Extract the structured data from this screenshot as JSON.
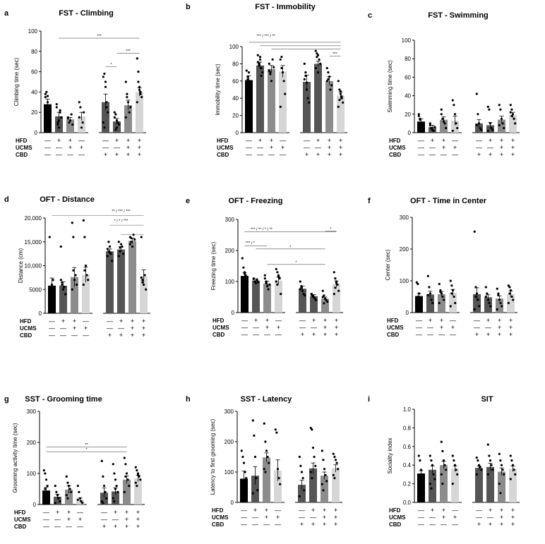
{
  "groups": {
    "row_labels": [
      "HFD",
      "UCMS",
      "CBD"
    ],
    "signs": [
      [
        "—",
        "+",
        "+",
        "—",
        "—",
        "+",
        "+",
        "+"
      ],
      [
        "—",
        "—",
        "+",
        "+",
        "—",
        "—",
        "+",
        "+"
      ],
      [
        "—",
        "—",
        "—",
        "—",
        "+",
        "+",
        "+",
        "+"
      ]
    ]
  },
  "colors": [
    "#000000",
    "#555555",
    "#8c8c8c",
    "#d6d6d6",
    "#555555",
    "#555555",
    "#8c8c8c",
    "#d6d6d6"
  ],
  "chart_data": [
    {
      "letter": "a",
      "type": "bar",
      "title": "FST - Climbing",
      "ylabel": "Climbing time (sec)",
      "ylim": [
        0,
        100
      ],
      "yticks": [
        0,
        20,
        40,
        60,
        80,
        100
      ],
      "values": [
        28,
        16,
        13,
        16,
        30,
        11,
        27,
        40
      ],
      "errors": [
        5,
        4,
        2,
        4,
        8,
        3,
        5,
        4
      ],
      "points": [
        [
          35,
          40,
          30,
          25,
          20,
          38,
          22,
          36
        ],
        [
          28,
          10,
          5,
          20,
          15,
          25,
          8,
          12,
          22
        ],
        [
          15,
          10,
          12,
          18,
          8,
          14
        ],
        [
          30,
          25,
          5,
          10,
          20,
          15
        ],
        [
          55,
          58,
          45,
          30,
          20,
          10,
          5,
          50,
          25
        ],
        [
          20,
          18,
          5,
          10,
          8,
          15,
          3,
          12
        ],
        [
          50,
          38,
          30,
          20,
          25,
          15,
          35
        ],
        [
          73,
          60,
          45,
          40,
          35,
          30,
          50,
          42,
          38
        ]
      ],
      "sig": [
        {
          "from": 1,
          "to": 7,
          "level": 93,
          "text": "***"
        },
        {
          "from": 4,
          "to": 5,
          "level": 65,
          "text": "*"
        },
        {
          "from": 5,
          "to": 7,
          "level": 78,
          "text": "***"
        }
      ]
    },
    {
      "letter": "b",
      "type": "bar",
      "title": "FST - Immobility",
      "ylabel": "Immobility time (sec)",
      "ylim": [
        0,
        100
      ],
      "yticks": [
        0,
        20,
        40,
        60,
        80,
        100
      ],
      "values": [
        61,
        78,
        74,
        71,
        59,
        80,
        60,
        43
      ],
      "errors": [
        5,
        4,
        4,
        7,
        8,
        3,
        5,
        4
      ],
      "points": [
        [
          55,
          65,
          70,
          60,
          58,
          72,
          62
        ],
        [
          90,
          80,
          85,
          75,
          70,
          82,
          78,
          88,
          66
        ],
        [
          80,
          70,
          60,
          85,
          76,
          72,
          68
        ],
        [
          85,
          88,
          70,
          60,
          45,
          30,
          75
        ],
        [
          80,
          70,
          50,
          40,
          35,
          62,
          66,
          58
        ],
        [
          95,
          92,
          90,
          85,
          80,
          75,
          88,
          70
        ],
        [
          75,
          70,
          65,
          50,
          55,
          60,
          62
        ],
        [
          60,
          50,
          45,
          40,
          35,
          30,
          38,
          48,
          42
        ]
      ],
      "sig": [
        {
          "from": 0,
          "to": 7,
          "level": 105,
          "text": ""
        },
        {
          "from": 1,
          "to": 7,
          "level": 101,
          "text": ""
        },
        {
          "from": 2,
          "to": 7,
          "level": 97,
          "text": ""
        },
        {
          "from": 6,
          "to": 7,
          "level": 89,
          "text": "***"
        }
      ],
      "sig_caption": {
        "text": "*** / *** / **",
        "from": 0,
        "to": 3,
        "level": 111
      }
    },
    {
      "letter": "c",
      "type": "bar",
      "title": "FST - Swimming",
      "ylabel": "Swimming time (sec)",
      "ylim": [
        0,
        100
      ],
      "yticks": [
        0,
        20,
        40,
        60,
        80,
        100
      ],
      "values": [
        12,
        6,
        14,
        13,
        10,
        8,
        14,
        19
      ],
      "errors": [
        3,
        2,
        3,
        5,
        4,
        3,
        4,
        3
      ],
      "points": [
        [
          20,
          15,
          10,
          8,
          5,
          18,
          14
        ],
        [
          8,
          5,
          3,
          2,
          6,
          10
        ],
        [
          20,
          15,
          12,
          10,
          5,
          25
        ],
        [
          35,
          30,
          20,
          10,
          5,
          2
        ],
        [
          42,
          20,
          10,
          5,
          3,
          8
        ],
        [
          28,
          25,
          10,
          5,
          3,
          2
        ],
        [
          30,
          25,
          15,
          10,
          5,
          8
        ],
        [
          30,
          25,
          20,
          15,
          10,
          22,
          18
        ]
      ],
      "sig": []
    },
    {
      "letter": "d",
      "type": "bar",
      "title": "OFT - Distance",
      "ylabel": "Distance (cm)",
      "ylim": [
        0,
        20000
      ],
      "yticks": [
        0,
        5000,
        10000,
        15000,
        20000
      ],
      "ytick_labels": [
        "0",
        "5000",
        "10,000",
        "15,000",
        "20,000"
      ],
      "values": [
        5800,
        5800,
        7600,
        8100,
        13000,
        13400,
        15200,
        7700
      ],
      "errors": [
        1600,
        800,
        2000,
        1600,
        500,
        600,
        600,
        1400
      ],
      "points": [
        [
          16000,
          5000,
          6000,
          7000,
          4000,
          5500
        ],
        [
          14000,
          6000,
          5000,
          5500,
          4000,
          7000,
          6500
        ],
        [
          19000,
          16000,
          7000,
          8000,
          6000,
          5000,
          9000
        ],
        [
          19500,
          16000,
          10000,
          8000,
          7000,
          6000,
          9000
        ],
        [
          12000,
          13000,
          14000,
          12500,
          11000,
          13500,
          15000,
          12800
        ],
        [
          12000,
          13000,
          14500,
          14000,
          12500,
          15000,
          13800
        ],
        [
          16000,
          15000,
          14000,
          16500,
          15500,
          14500,
          15800
        ],
        [
          16000,
          7000,
          6000,
          8000,
          5000,
          7500,
          6500
        ]
      ],
      "sig": [
        {
          "from": 0,
          "to": 7,
          "level": 20500,
          "text": ""
        },
        {
          "from": 4,
          "to": 7,
          "level": 18500,
          "text": ""
        },
        {
          "from": 5,
          "to": 7,
          "level": 16500,
          "text": ""
        }
      ],
      "sig_captions": [
        {
          "text": "** / *** / ***",
          "from": 4,
          "to": 6,
          "level": 21200
        },
        {
          "text": "* / * / ***",
          "from": 4,
          "to": 6,
          "level": 19200
        }
      ]
    },
    {
      "letter": "e",
      "type": "bar",
      "title": "OFT - Freezing",
      "ylabel": "Freezing time (sec)",
      "ylim": [
        0,
        300
      ],
      "yticks": [
        0,
        100,
        200,
        300
      ],
      "values": [
        118,
        103,
        93,
        103,
        77,
        53,
        45,
        92
      ],
      "errors": [
        10,
        6,
        8,
        12,
        8,
        5,
        5,
        10
      ],
      "points": [
        [
          175,
          145,
          130,
          120,
          110,
          100,
          95,
          125
        ],
        [
          110,
          100,
          95,
          105,
          98,
          108
        ],
        [
          120,
          100,
          85,
          75,
          90,
          110,
          95
        ],
        [
          140,
          130,
          120,
          110,
          60,
          100,
          90,
          115
        ],
        [
          100,
          85,
          70,
          60,
          55,
          75,
          80
        ],
        [
          60,
          55,
          50,
          45,
          40,
          58,
          52
        ],
        [
          70,
          55,
          45,
          40,
          35,
          50,
          30
        ],
        [
          130,
          110,
          100,
          90,
          70,
          60,
          80,
          95
        ]
      ],
      "sig": [
        {
          "from": 0,
          "to": 7,
          "level": 260,
          "text": ""
        },
        {
          "from": 0,
          "to": 2,
          "level": 215,
          "text": ""
        },
        {
          "from": 1,
          "to": 6,
          "level": 205,
          "text": "*"
        },
        {
          "from": 2,
          "to": 6,
          "level": 155,
          "text": "*"
        },
        {
          "from": 6,
          "to": 7,
          "level": 262,
          "text": "*"
        }
      ],
      "sig_captions": [
        {
          "text": "*** / ** / * / **",
          "from": 0,
          "to": 3,
          "level": 265
        },
        {
          "text": "*** / *",
          "from": 0,
          "to": 1,
          "level": 220
        }
      ]
    },
    {
      "letter": "f",
      "type": "bar",
      "title": "OFT - Time in Center",
      "ylabel": "Center (sec)",
      "ylim": [
        0,
        300
      ],
      "yticks": [
        0,
        100,
        200,
        300
      ],
      "values": [
        52,
        57,
        58,
        63,
        58,
        48,
        44,
        58
      ],
      "errors": [
        8,
        10,
        8,
        10,
        20,
        8,
        8,
        10
      ],
      "points": [
        [
          95,
          90,
          60,
          40,
          30,
          20,
          50
        ],
        [
          115,
          80,
          60,
          40,
          30,
          55
        ],
        [
          90,
          70,
          60,
          50,
          40,
          30,
          65
        ],
        [
          100,
          85,
          70,
          50,
          30,
          20,
          60
        ],
        [
          255,
          80,
          60,
          40,
          20,
          10,
          50
        ],
        [
          80,
          60,
          40,
          30,
          20,
          50
        ],
        [
          75,
          60,
          40,
          30,
          20,
          10,
          55
        ],
        [
          85,
          80,
          70,
          50,
          40,
          30,
          60
        ]
      ],
      "sig": []
    },
    {
      "letter": "g",
      "type": "bar",
      "title": "SST - Grooming time",
      "ylabel": "Grooming activity time (sec)",
      "ylim": [
        0,
        300
      ],
      "yticks": [
        0,
        100,
        200,
        300
      ],
      "values": [
        45,
        25,
        48,
        15,
        38,
        42,
        80,
        84
      ],
      "errors": [
        10,
        8,
        12,
        6,
        15,
        12,
        12,
        10
      ],
      "points": [
        [
          110,
          100,
          80,
          60,
          40,
          20,
          50
        ],
        [
          60,
          40,
          30,
          20,
          10,
          5
        ],
        [
          90,
          70,
          60,
          50,
          40,
          30,
          20
        ],
        [
          60,
          40,
          20,
          10,
          5,
          15
        ],
        [
          140,
          90,
          60,
          40,
          20,
          10,
          5
        ],
        [
          130,
          100,
          80,
          60,
          40,
          20,
          10,
          50
        ],
        [
          150,
          130,
          100,
          80,
          60,
          40,
          90
        ],
        [
          120,
          110,
          100,
          90,
          80,
          70,
          60,
          95
        ]
      ],
      "sig": [
        {
          "from": 0,
          "to": 6,
          "level": 185,
          "text": "**"
        },
        {
          "from": 0,
          "to": 6,
          "level": 170,
          "text": "*"
        }
      ]
    },
    {
      "letter": "h",
      "type": "bar",
      "title": "SST - Latency",
      "ylabel": "Latency to first grooming (sec)",
      "ylim": [
        0,
        300
      ],
      "yticks": [
        0,
        100,
        200,
        300
      ],
      "values": [
        78,
        88,
        148,
        105,
        58,
        112,
        88,
        112
      ],
      "errors": [
        25,
        30,
        15,
        35,
        15,
        18,
        12,
        12
      ],
      "points": [
        [
          170,
          150,
          130,
          100,
          80,
          60,
          40
        ],
        [
          270,
          220,
          150,
          80,
          40,
          30
        ],
        [
          260,
          200,
          170,
          150,
          130,
          110,
          100
        ],
        [
          240,
          230,
          110,
          80,
          60
        ],
        [
          150,
          120,
          100,
          80,
          40,
          20
        ],
        [
          245,
          240,
          180,
          150,
          120,
          100,
          80
        ],
        [
          170,
          140,
          110,
          90,
          70,
          60,
          40
        ],
        [
          160,
          150,
          140,
          130,
          110,
          90,
          80
        ]
      ],
      "sig": []
    },
    {
      "letter": "i",
      "type": "bar",
      "title": "SIT",
      "ylabel": "Sociality index",
      "ylim": [
        0,
        1.0
      ],
      "yticks": [
        0,
        0.2,
        0.4,
        0.6,
        0.8,
        1.0
      ],
      "ytick_labels": [
        "0.0",
        "0.2",
        "0.4",
        "0.6",
        "0.8",
        "1.0"
      ],
      "values": [
        0.31,
        0.35,
        0.4,
        0.36,
        0.37,
        0.38,
        0.33,
        0.36
      ],
      "errors": [
        0.03,
        0.04,
        0.04,
        0.03,
        0.02,
        0.04,
        0.04,
        0.03
      ],
      "points": [
        [
          0.5,
          0.45,
          0.35,
          0.3,
          0.25,
          0.2
        ],
        [
          0.5,
          0.45,
          0.4,
          0.3,
          0.25,
          0.2,
          0.15
        ],
        [
          0.65,
          0.55,
          0.45,
          0.4,
          0.35,
          0.3,
          0.2
        ],
        [
          0.5,
          0.45,
          0.4,
          0.35,
          0.3,
          0.2
        ],
        [
          0.48,
          0.45,
          0.4,
          0.38,
          0.35,
          0.3
        ],
        [
          0.62,
          0.5,
          0.45,
          0.4,
          0.35,
          0.3
        ],
        [
          0.52,
          0.45,
          0.4,
          0.35,
          0.3,
          0.2,
          0.1
        ],
        [
          0.5,
          0.45,
          0.4,
          0.35,
          0.3,
          0.25
        ]
      ],
      "sig": []
    }
  ]
}
